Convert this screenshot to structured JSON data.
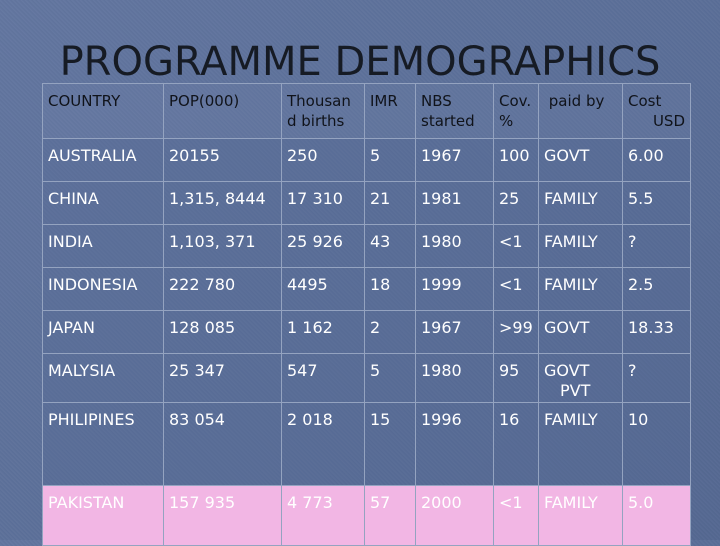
{
  "slide": {
    "title": "PROGRAMME DEMOGRAPHICS"
  },
  "table": {
    "headers": [
      "COUNTRY",
      "POP(000)",
      "Thousan d births",
      "IMR",
      "NBS started",
      "Cov. %",
      "paid by",
      "Cost USD"
    ],
    "rows": [
      [
        "AUSTRALIA",
        "20155",
        "250",
        "5",
        "1967",
        "100",
        "GOVT",
        "6.00"
      ],
      [
        "CHINA",
        "1,315, 8444",
        "17 310",
        "21",
        "1981",
        "25",
        "FAMILY",
        "5.5"
      ],
      [
        "INDIA",
        "1,103, 371",
        "25 926",
        "43",
        "1980",
        "<1",
        "FAMILY",
        "?"
      ],
      [
        "INDONESIA",
        "222 780",
        "4495",
        "18",
        "1999",
        "<1",
        "FAMILY",
        "2.5"
      ],
      [
        "JAPAN",
        "128 085",
        "1 162",
        "2",
        "1967",
        ">99",
        "GOVT",
        "18.33"
      ],
      [
        "MALYSIA",
        "25 347",
        "547",
        "5",
        "1980",
        "95",
        "GOVT PVT",
        "?"
      ],
      [
        "PHILIPINES",
        "83 054",
        "2 018",
        "15",
        "1996",
        "16",
        "FAMILY",
        "10"
      ],
      [
        "PAKISTAN",
        "157 935",
        "4 773",
        "57",
        "2000",
        "<1",
        "FAMILY",
        "5.0"
      ]
    ],
    "highlight_row_index": 7
  },
  "colors": {
    "background": "#5a6f9b",
    "highlight_row": "#f2b6e4",
    "title": "#161b24",
    "cell_text": "#ffffff",
    "header_text": "#10131a"
  }
}
